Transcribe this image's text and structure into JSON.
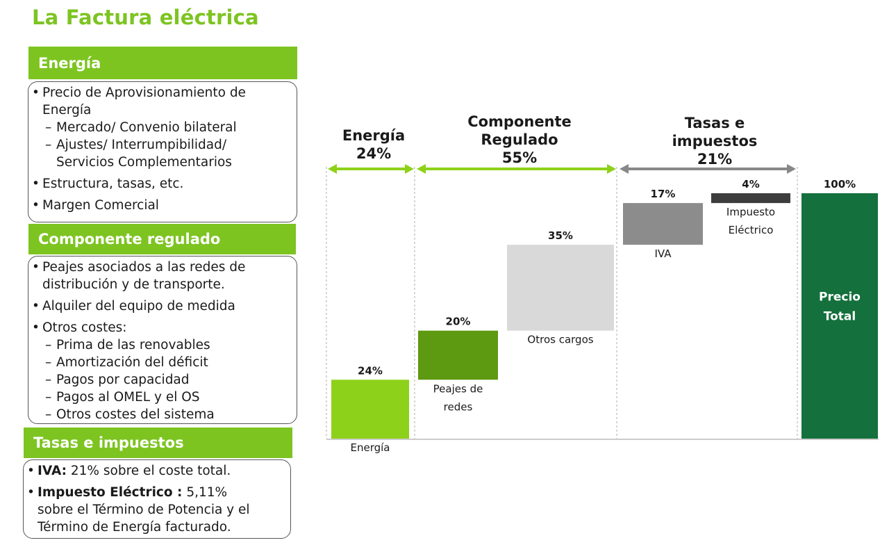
{
  "title": "La Factura eléctrica",
  "sections": {
    "energia": {
      "heading": "Energía",
      "items": [
        {
          "text": "Precio de Aprovisionamiento de"
        },
        {
          "text": "Energía"
        },
        {
          "text": "Mercado/ Convenio bilateral"
        },
        {
          "text": "Ajustes/ Interrumpibilidad/"
        },
        {
          "text": "Servicios Complementarios"
        },
        {
          "text": "Estructura, tasas, etc."
        },
        {
          "text": "Margen Comercial"
        }
      ]
    },
    "regulado": {
      "heading": "Componente regulado",
      "items": [
        {
          "text": "Peajes asociados a las redes de"
        },
        {
          "text": "distribución y de transporte."
        },
        {
          "text": "Alquiler del equipo de medida"
        },
        {
          "text": "Otros costes:"
        },
        {
          "text": "Prima de las renovables"
        },
        {
          "text": "Amortización del déficit"
        },
        {
          "text": "Pagos por capacidad"
        },
        {
          "text": "Pagos al OMEL y el OS"
        },
        {
          "text": "Otros costes del sistema"
        }
      ]
    },
    "tasas": {
      "heading": "Tasas e impuestos",
      "iva_bold": "IVA:",
      "iva_rest": " 21% sobre el coste total.",
      "ie_bold": "Impuesto Eléctrico :",
      "ie_rest1": " 5,11%",
      "ie_rest2": "sobre el Término de Potencia y el",
      "ie_rest3": "Término de Energía facturado."
    }
  },
  "colors": {
    "accent": "#7dc421",
    "energia": "#8ed11a",
    "peajes": "#5e9a11",
    "otros": "#d9d9d9",
    "iva": "#8c8c8c",
    "impuesto": "#3d3d3d",
    "total": "#14703c",
    "arrow_green": "#8ed11a",
    "arrow_grey": "#888888"
  },
  "chart_data": {
    "type": "bar",
    "subtype": "waterfall",
    "ylim": [
      0,
      100
    ],
    "groups": [
      {
        "name": "Energía",
        "value_label": "24%",
        "lines": [
          "Energía",
          "24%"
        ]
      },
      {
        "name": "Componente Regulado",
        "value_label": "55%",
        "lines": [
          "Componente",
          "Regulado",
          "55%"
        ]
      },
      {
        "name": "Tasas e impuestos",
        "value_label": "21%",
        "lines": [
          "Tasas e",
          "impuestos",
          "21%"
        ]
      }
    ],
    "bars": [
      {
        "category": "Energía",
        "label_lines": [
          "Energía"
        ],
        "start": 0,
        "value": 24,
        "data_label": "24%",
        "label_pos": "below"
      },
      {
        "category": "Peajes de redes",
        "label_lines": [
          "Peajes de",
          "redes"
        ],
        "start": 24,
        "value": 20,
        "data_label": "20%",
        "label_pos": "below"
      },
      {
        "category": "Otros cargos",
        "label_lines": [
          "Otros cargos"
        ],
        "start": 44,
        "value": 35,
        "data_label": "35%",
        "label_pos": "below"
      },
      {
        "category": "IVA",
        "label_lines": [
          "IVA"
        ],
        "start": 79,
        "value": 17,
        "data_label": "17%",
        "label_pos": "below"
      },
      {
        "category": "Impuesto Eléctrico",
        "label_lines": [
          "Impuesto",
          "Eléctrico"
        ],
        "start": 96,
        "value": 4,
        "data_label": "4%",
        "label_pos": "below"
      },
      {
        "category": "Precio Total",
        "label_lines": [
          "Precio",
          "Total"
        ],
        "start": 0,
        "value": 100,
        "data_label": "100%",
        "label_pos": "inside"
      }
    ]
  }
}
